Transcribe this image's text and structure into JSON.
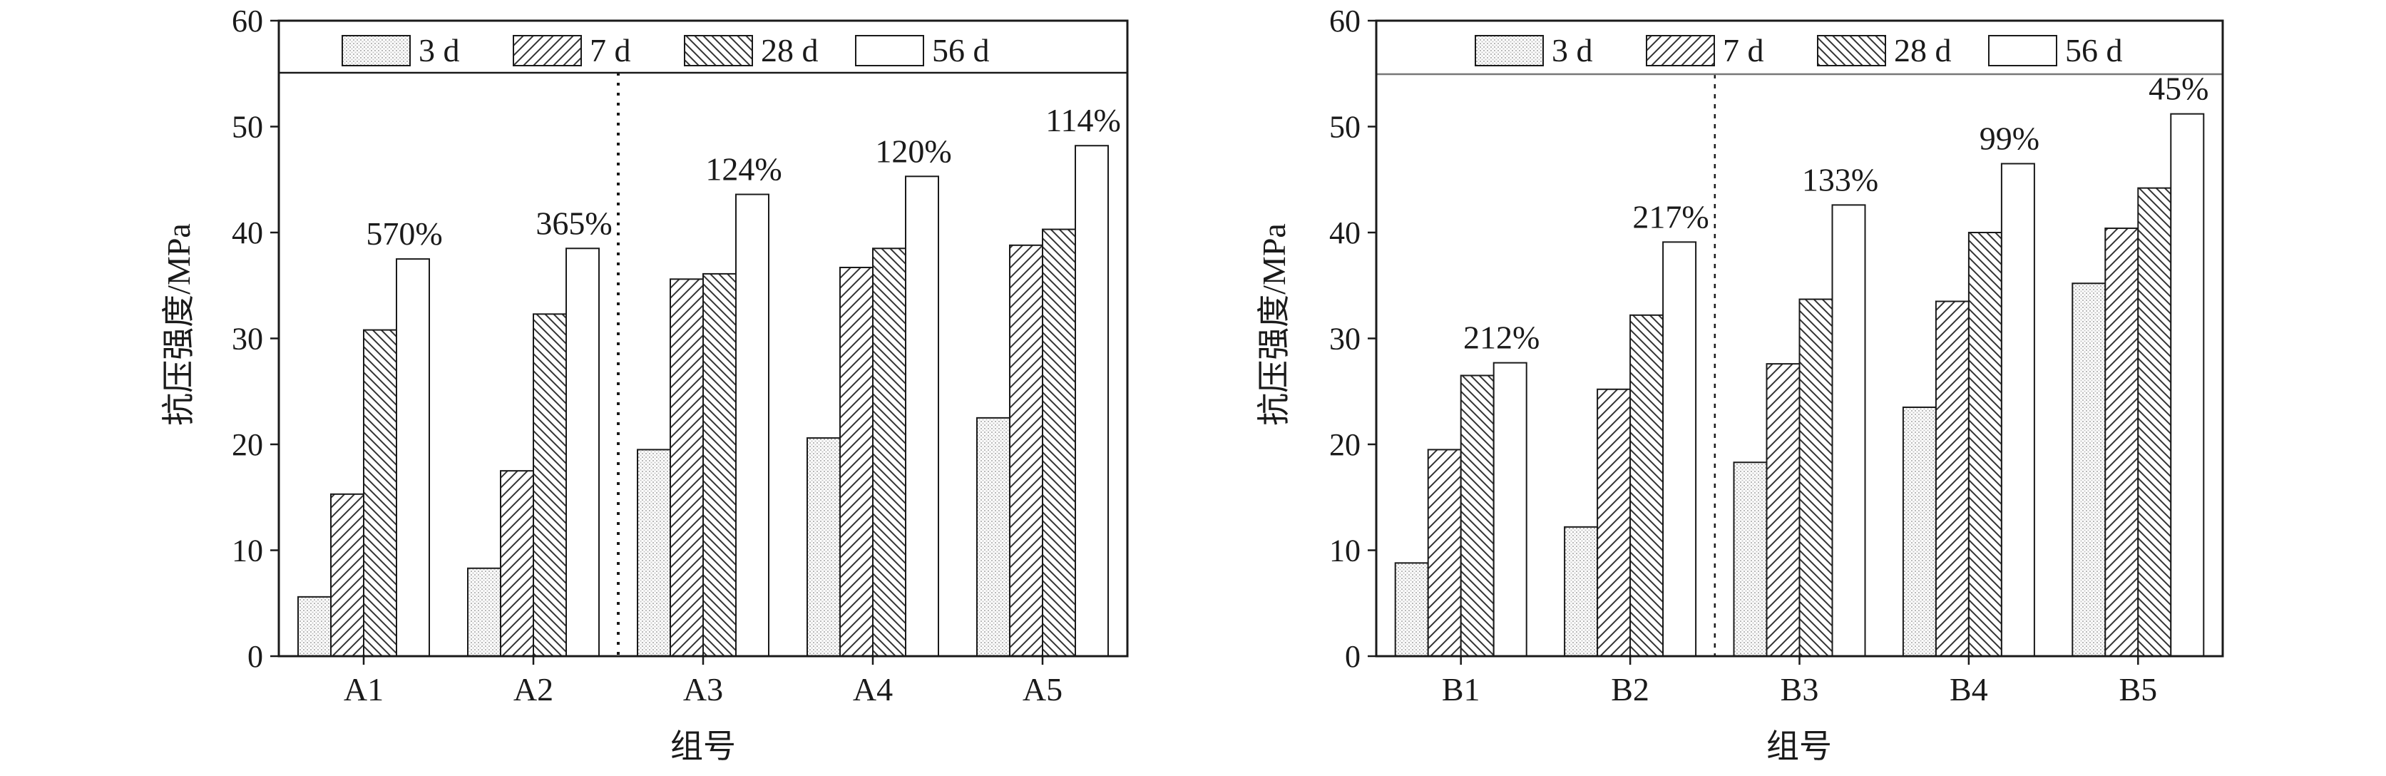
{
  "chart_data": [
    {
      "type": "bar",
      "title": "",
      "xlabel": "组号",
      "ylabel": "抗压强度/MPa",
      "ylim": [
        0,
        60
      ],
      "yticks": [
        "0",
        "10",
        "20",
        "30",
        "40",
        "50",
        "60"
      ],
      "categories": [
        "A1",
        "A2",
        "A3",
        "A4",
        "A5"
      ],
      "series": [
        {
          "name": "3 d",
          "values": [
            5.6,
            8.3,
            19.5,
            20.6,
            22.5
          ],
          "pattern": "dots"
        },
        {
          "name": "7 d",
          "values": [
            15.3,
            17.5,
            35.6,
            36.7,
            38.8
          ],
          "pattern": "hatch-forward"
        },
        {
          "name": "28 d",
          "values": [
            30.8,
            32.3,
            36.1,
            38.5,
            40.3
          ],
          "pattern": "hatch-back"
        },
        {
          "name": "56 d",
          "values": [
            37.5,
            38.5,
            43.6,
            45.3,
            48.2
          ],
          "pattern": "blank"
        }
      ],
      "annotations": [
        "570%",
        "365%",
        "124%",
        "120%",
        "114%"
      ],
      "divider_after_category": 1,
      "legend_position": "top-inside"
    },
    {
      "type": "bar",
      "title": "",
      "xlabel": "组号",
      "ylabel": "抗压强度/MPa",
      "ylim": [
        0,
        60
      ],
      "yticks": [
        "0",
        "10",
        "20",
        "30",
        "40",
        "50",
        "60"
      ],
      "categories": [
        "B1",
        "B2",
        "B3",
        "B4",
        "B5"
      ],
      "series": [
        {
          "name": "3 d",
          "values": [
            8.8,
            12.2,
            18.3,
            23.5,
            35.2
          ],
          "pattern": "dots"
        },
        {
          "name": "7 d",
          "values": [
            19.5,
            25.2,
            27.6,
            33.5,
            40.4
          ],
          "pattern": "hatch-forward"
        },
        {
          "name": "28 d",
          "values": [
            26.5,
            32.2,
            33.7,
            40.0,
            44.2
          ],
          "pattern": "hatch-back"
        },
        {
          "name": "56 d",
          "values": [
            27.7,
            39.1,
            42.6,
            46.5,
            51.2
          ],
          "pattern": "blank"
        }
      ],
      "annotations": [
        "212%",
        "217%",
        "133%",
        "99%",
        "45%"
      ],
      "divider_after_category": 1,
      "legend_position": "top-inside"
    }
  ]
}
